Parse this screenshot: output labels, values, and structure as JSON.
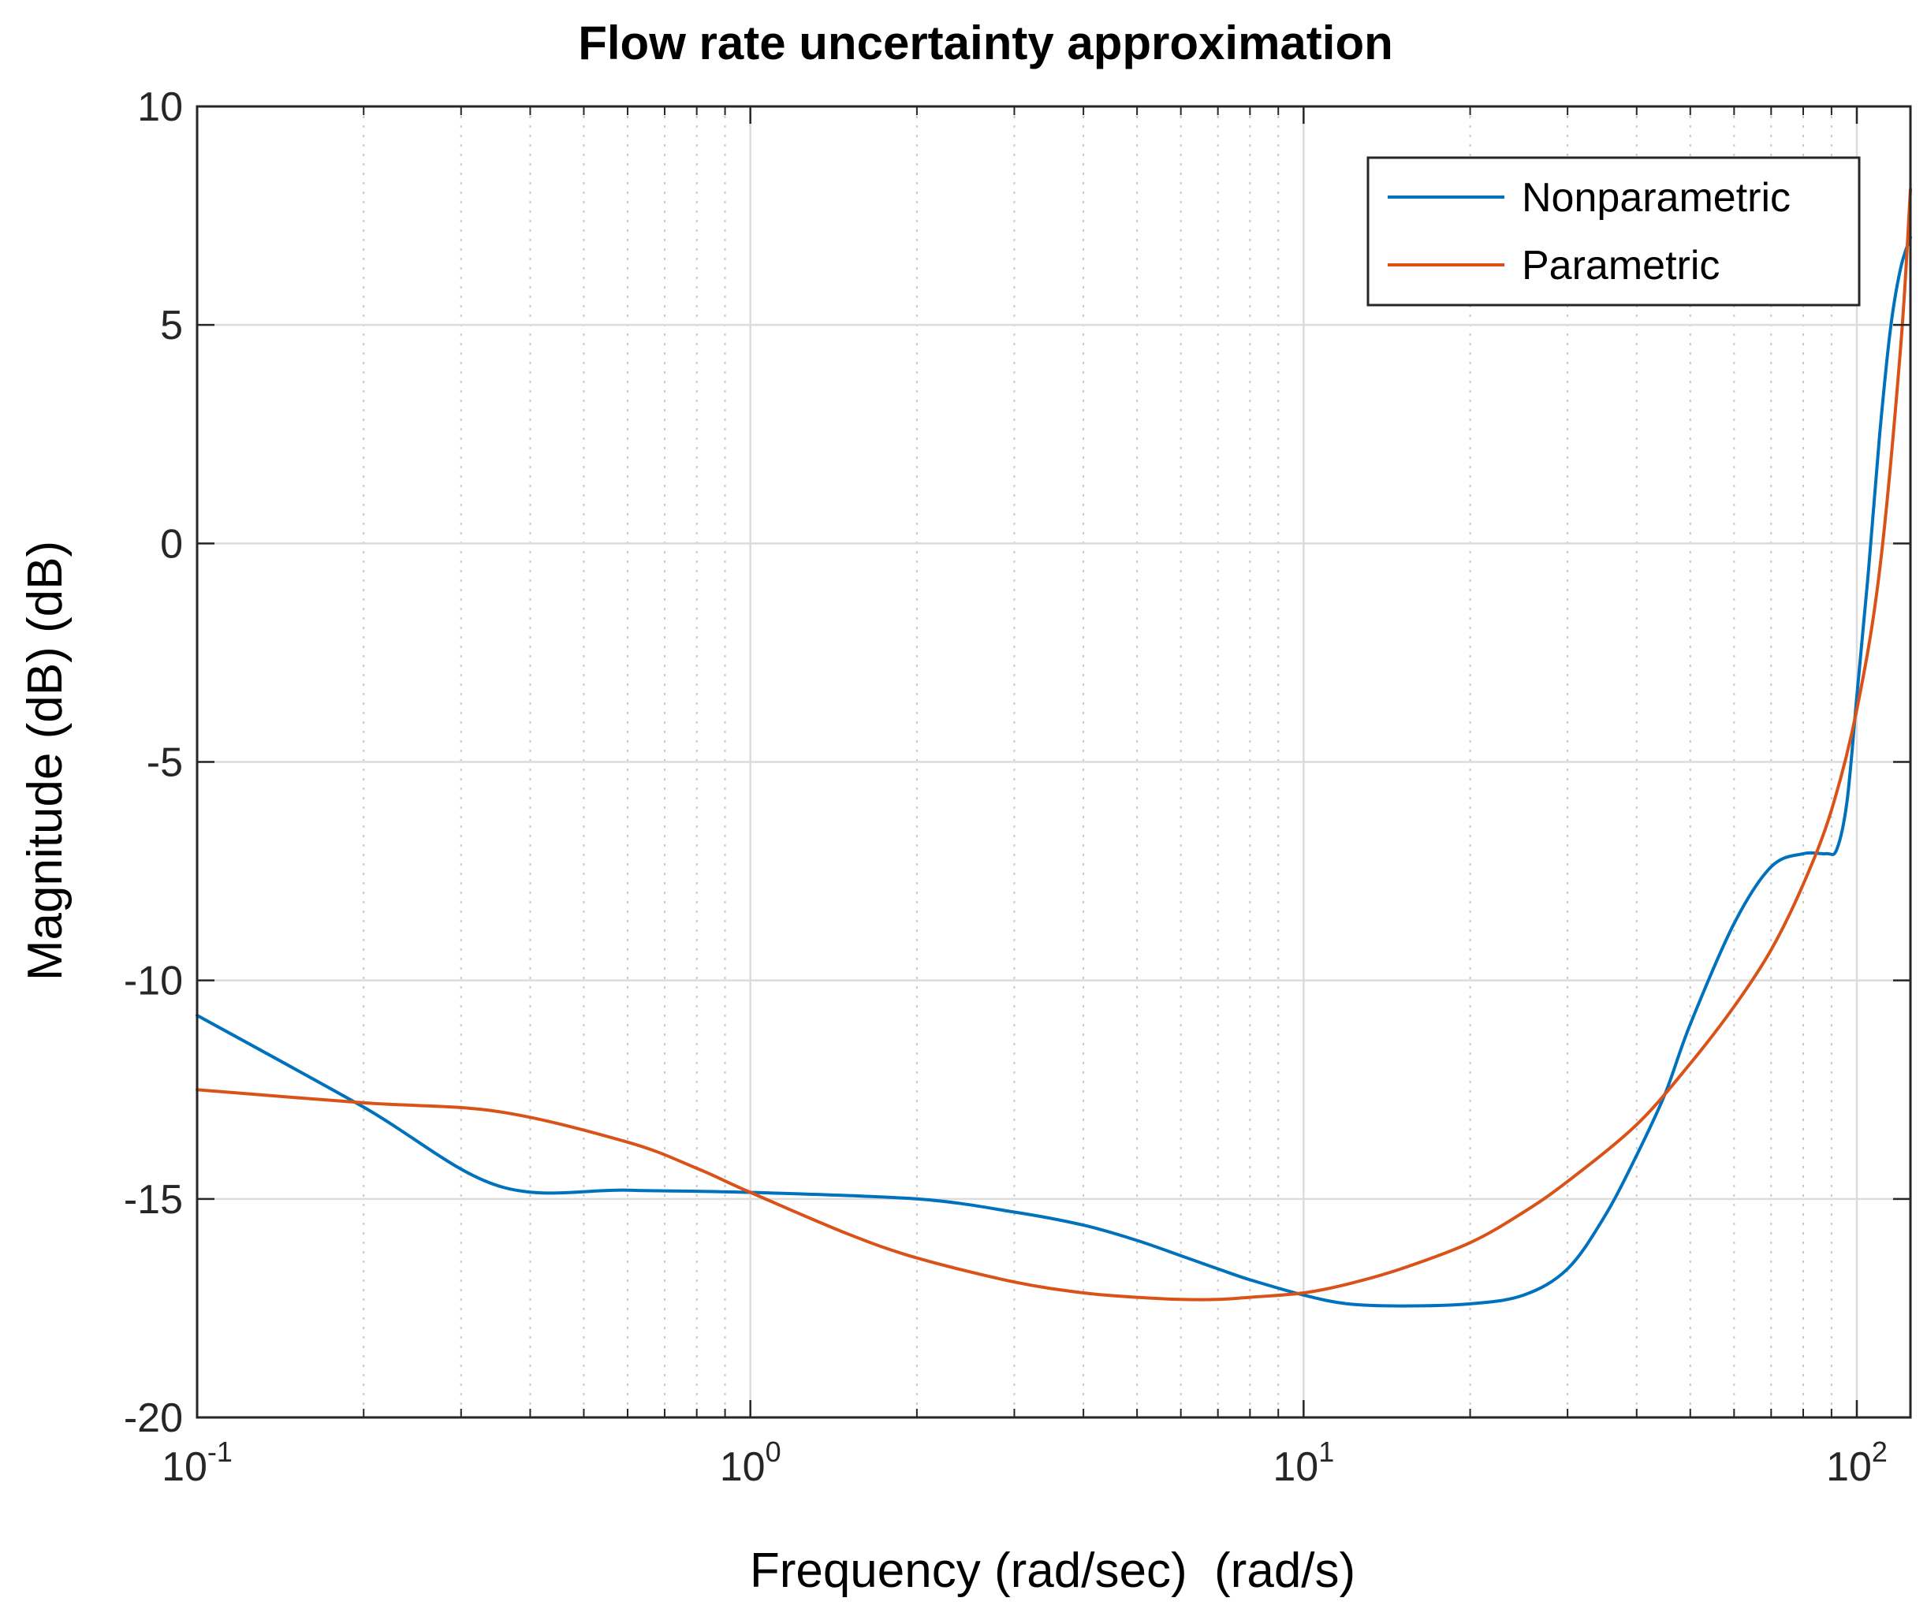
{
  "chart_data": {
    "type": "line",
    "title": "Flow rate uncertainty approximation",
    "xlabel": "Frequency (rad/sec)  (rad/s)",
    "ylabel": "Magnitude (dB) (dB)",
    "xscale": "log",
    "xlim": [
      0.1,
      125
    ],
    "ylim": [
      -20,
      10
    ],
    "grid": true,
    "legend_position": "top-right",
    "x_ticks": [
      {
        "base": "10",
        "exp": "-1",
        "value": 0.1
      },
      {
        "base": "10",
        "exp": "0",
        "value": 1
      },
      {
        "base": "10",
        "exp": "1",
        "value": 10
      },
      {
        "base": "10",
        "exp": "2",
        "value": 100
      }
    ],
    "y_ticks": [
      {
        "label": "10",
        "value": 10
      },
      {
        "label": "5",
        "value": 5
      },
      {
        "label": "0",
        "value": 0
      },
      {
        "label": "-5",
        "value": -5
      },
      {
        "label": "-10",
        "value": -10
      },
      {
        "label": "-15",
        "value": -15
      },
      {
        "label": "-20",
        "value": -20
      }
    ],
    "series": [
      {
        "name": "Nonparametric",
        "color": "#0072BD",
        "x": [
          0.1,
          0.2,
          0.35,
          0.6,
          1,
          2,
          3,
          4,
          5,
          6,
          7,
          8,
          10,
          12,
          15,
          20,
          25,
          30,
          35,
          40,
          45,
          50,
          60,
          70,
          80,
          88,
          92,
          96,
          100,
          105,
          110,
          115,
          120,
          125
        ],
        "y": [
          -10.8,
          -12.9,
          -14.7,
          -14.8,
          -14.85,
          -15.0,
          -15.3,
          -15.6,
          -15.95,
          -16.3,
          -16.6,
          -16.85,
          -17.2,
          -17.4,
          -17.45,
          -17.4,
          -17.2,
          -16.6,
          -15.4,
          -14.0,
          -12.6,
          -11.0,
          -8.7,
          -7.4,
          -7.1,
          -7.1,
          -7.0,
          -5.9,
          -3.5,
          -0.6,
          2.5,
          4.9,
          6.3,
          7.0
        ]
      },
      {
        "name": "Parametric",
        "color": "#D95319",
        "x": [
          0.1,
          0.2,
          0.35,
          0.6,
          0.8,
          1,
          1.5,
          2,
          3,
          4,
          5,
          6,
          7,
          8,
          10,
          12,
          15,
          20,
          25,
          30,
          40,
          50,
          60,
          70,
          80,
          90,
          100,
          110,
          120,
          125
        ],
        "y": [
          -12.5,
          -12.8,
          -13.0,
          -13.7,
          -14.3,
          -14.85,
          -15.8,
          -16.35,
          -16.9,
          -17.15,
          -17.25,
          -17.3,
          -17.3,
          -17.25,
          -17.15,
          -16.95,
          -16.6,
          -16.0,
          -15.3,
          -14.6,
          -13.3,
          -11.9,
          -10.6,
          -9.3,
          -7.8,
          -6.1,
          -3.8,
          -0.6,
          4.5,
          8.1
        ]
      }
    ]
  }
}
